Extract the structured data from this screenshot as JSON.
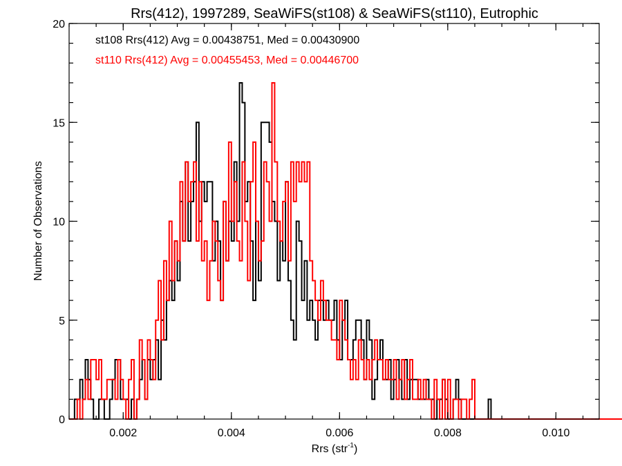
{
  "chart_data": {
    "type": "step-histogram",
    "title": "Rrs(412), 1997289, SeaWiFS(st108) & SeaWiFS(st110), Eutrophic",
    "xlabel_main": "Rrs (str",
    "xlabel_sup": "-1",
    "xlabel_close": ")",
    "ylabel": "Number of Observations",
    "xlim": [
      0.001,
      0.0108
    ],
    "ylim": [
      0,
      20
    ],
    "xticks": [
      {
        "value": 0.002,
        "label": "0.002"
      },
      {
        "value": 0.004,
        "label": "0.004"
      },
      {
        "value": 0.006,
        "label": "0.006"
      },
      {
        "value": 0.008,
        "label": "0.008"
      },
      {
        "value": 0.01,
        "label": "0.010"
      }
    ],
    "yticks": [
      {
        "value": 0,
        "label": "0"
      },
      {
        "value": 5,
        "label": "5"
      },
      {
        "value": 10,
        "label": "10"
      },
      {
        "value": 15,
        "label": "15"
      },
      {
        "value": 20,
        "label": "20"
      }
    ],
    "bin_start": 0.001,
    "bin_width": 5e-05,
    "series": [
      {
        "name": "st108",
        "color": "#000000",
        "annotation": "st108 Rrs(412) Avg = 0.00438751, Med = 0.00430900",
        "counts": [
          0,
          0,
          1,
          1,
          2,
          1,
          3,
          2,
          1,
          0,
          0,
          1,
          1,
          0,
          0,
          1,
          2,
          3,
          3,
          1,
          1,
          1,
          0,
          1,
          0,
          1,
          2,
          3,
          1,
          3,
          2,
          3,
          4,
          2,
          5,
          4,
          6,
          7,
          6,
          9,
          7,
          11,
          9,
          13,
          9,
          11,
          12,
          15,
          10,
          12,
          11,
          12,
          12,
          8,
          10,
          9,
          6,
          11,
          8,
          10,
          9,
          13,
          10,
          17,
          16,
          11,
          12,
          9,
          6,
          10,
          7,
          15,
          15,
          15,
          14,
          11,
          10,
          7,
          9,
          8,
          12,
          7,
          5,
          4,
          10,
          9,
          6,
          8,
          5,
          6,
          5,
          4,
          6,
          6,
          5,
          6,
          5,
          5,
          6,
          4,
          3,
          5,
          6,
          3,
          3,
          4,
          5,
          5,
          4,
          2,
          5,
          4,
          1,
          2,
          3,
          4,
          2,
          2,
          3,
          1,
          2,
          3,
          2,
          1,
          3,
          1,
          2,
          2,
          2,
          1,
          1,
          1,
          2,
          1,
          1,
          0,
          1,
          1,
          2,
          1,
          0,
          0,
          1,
          2,
          1,
          0,
          0,
          0,
          0,
          0,
          0,
          0,
          0,
          0,
          0,
          1,
          0,
          0,
          0,
          0,
          0,
          0,
          0,
          0,
          0,
          0,
          0,
          0,
          0,
          0,
          0,
          0,
          0,
          0,
          0,
          0,
          0,
          0,
          0,
          0,
          0,
          0,
          0,
          0,
          0,
          0,
          0,
          0,
          0,
          0,
          0,
          0,
          0,
          0,
          0,
          0,
          0
        ]
      },
      {
        "name": "st110",
        "color": "#ff0000",
        "annotation": "st110 Rrs(412) Avg = 0.00455453, Med = 0.00446700",
        "counts": [
          0,
          0,
          0,
          1,
          0,
          1,
          2,
          1,
          3,
          3,
          2,
          3,
          1,
          1,
          2,
          2,
          2,
          1,
          3,
          2,
          1,
          0,
          2,
          3,
          0,
          1,
          4,
          3,
          1,
          4,
          3,
          2,
          5,
          7,
          4,
          8,
          6,
          10,
          7,
          9,
          8,
          12,
          9,
          13,
          11,
          12,
          13,
          9,
          12,
          8,
          9,
          6,
          8,
          10,
          9,
          7,
          6,
          11,
          8,
          14,
          10,
          12,
          9,
          8,
          13,
          10,
          7,
          12,
          14,
          10,
          8,
          9,
          13,
          12,
          10,
          17,
          13,
          10,
          9,
          11,
          12,
          8,
          13,
          11,
          13,
          12,
          13,
          12,
          13,
          8,
          7,
          6,
          5,
          7,
          6,
          5,
          5,
          4,
          4,
          3,
          6,
          5,
          4,
          3,
          2,
          3,
          2,
          4,
          3,
          2,
          3,
          2,
          3,
          4,
          3,
          3,
          2,
          3,
          2,
          2,
          3,
          1,
          2,
          3,
          1,
          2,
          3,
          1,
          1,
          2,
          1,
          2,
          1,
          1,
          0,
          2,
          1,
          0,
          2,
          0,
          2,
          0,
          1,
          1,
          0,
          1,
          1,
          0,
          1,
          2,
          0,
          0,
          0,
          0,
          0,
          0,
          0,
          0,
          0,
          0,
          0,
          0,
          0,
          0,
          0,
          0,
          0,
          0,
          0,
          0,
          0,
          0,
          0,
          0,
          0,
          0,
          0,
          0,
          0,
          0,
          0,
          0,
          0,
          0,
          0,
          0,
          0,
          0,
          0,
          0,
          0,
          0,
          0,
          0,
          0,
          0,
          0,
          0,
          0,
          0,
          0,
          0,
          0,
          0,
          0
        ]
      }
    ]
  }
}
